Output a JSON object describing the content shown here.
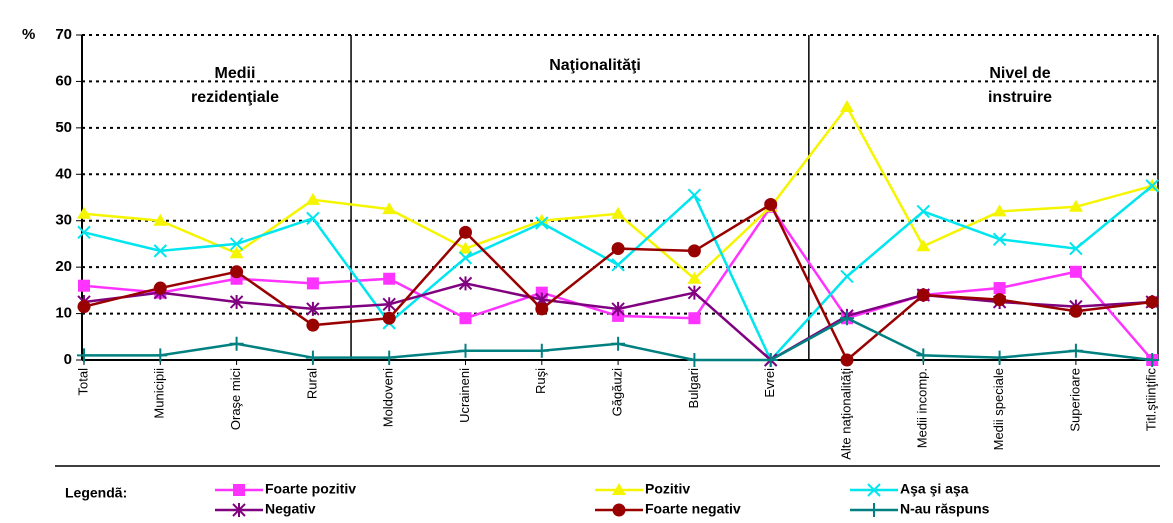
{
  "chart_data": {
    "type": "line",
    "y_label": "%",
    "legend_title": "Legendã:",
    "categories": [
      "Total",
      "Municipii",
      "Oraşe mici",
      "Rural",
      "Moldoveni",
      "Ucraineni",
      "Ruşi",
      "Găgăuzi",
      "Bulgari",
      "Evrei",
      "Alte naţionalităţi",
      "Medii incomp.",
      "Medii speciale",
      "Superioare",
      "Titl.ştiinţific"
    ],
    "annotations": [
      [
        "Medii",
        "rezidenţiale"
      ],
      [
        "Naţionalităţi"
      ],
      [
        "Nivel de",
        "instruire"
      ]
    ],
    "ylim": [
      0,
      70
    ],
    "yticks": [
      0,
      10,
      20,
      30,
      40,
      50,
      60,
      70
    ],
    "grid": true,
    "series": [
      {
        "name": "Foarte pozitiv",
        "color": "#ff33ff",
        "marker": "square",
        "values": [
          16,
          14.5,
          17.5,
          16.5,
          17.5,
          9,
          14.5,
          9.5,
          9,
          33,
          9,
          14,
          15.5,
          19,
          0
        ]
      },
      {
        "name": "Pozitiv",
        "color": "#f5f500",
        "marker": "triangle",
        "values": [
          31.5,
          30,
          23,
          34.5,
          32.5,
          24,
          30,
          31.5,
          17.5,
          33,
          54.5,
          24.5,
          32,
          33,
          37.5
        ]
      },
      {
        "name": "Aşa şi aşa",
        "color": "#00e5ee",
        "marker": "x",
        "values": [
          27.5,
          23.5,
          25,
          30.5,
          8,
          22,
          29.5,
          20.5,
          35.5,
          0,
          18,
          32,
          26,
          24,
          37.5
        ]
      },
      {
        "name": "Negativ",
        "color": "#800080",
        "marker": "star",
        "values": [
          12.5,
          14.5,
          12.5,
          11,
          12,
          16.5,
          13,
          11,
          14.5,
          0,
          9.5,
          14,
          12.5,
          11.5,
          12.5
        ]
      },
      {
        "name": "Foarte negativ",
        "color": "#990000",
        "marker": "circle",
        "values": [
          11.5,
          15.5,
          19,
          7.5,
          9,
          27.5,
          11,
          24,
          23.5,
          33.5,
          0,
          14,
          13,
          10.5,
          12.5
        ]
      },
      {
        "name": "N-au răspuns",
        "color": "#008080",
        "marker": "plus",
        "values": [
          1,
          1,
          3.5,
          0.5,
          0.5,
          2,
          2,
          3.5,
          0,
          0,
          9,
          1,
          0.5,
          2,
          0
        ]
      }
    ]
  }
}
